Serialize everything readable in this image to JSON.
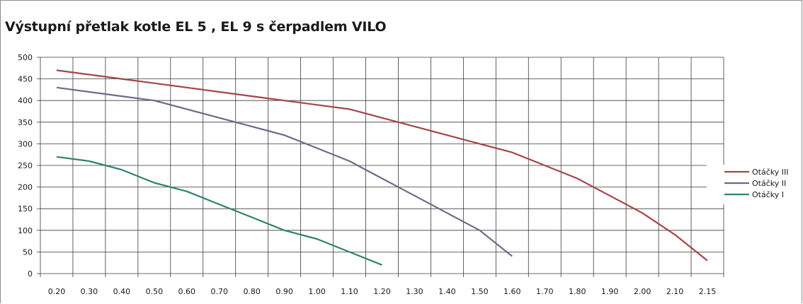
{
  "chart_data": {
    "type": "line",
    "title": "Výstupní přetlak kotle EL 5 , EL 9 s čerpadlem VILO",
    "xlabel": "",
    "ylabel": "",
    "categories": [
      "0.20",
      "0.30",
      "0.40",
      "0.50",
      "0.60",
      "0.70",
      "0.80",
      "0.90",
      "1.00",
      "1.10",
      "1.20",
      "1.30",
      "1.40",
      "1.50",
      "1.60",
      "1.70",
      "1.80",
      "1.90",
      "2.00",
      "2.10",
      "2.15"
    ],
    "y_ticks": [
      "0",
      "50",
      "100",
      "150",
      "200",
      "250",
      "300",
      "350",
      "400",
      "450",
      "500"
    ],
    "ylim": [
      0,
      500
    ],
    "grid": "vertical and horizontal",
    "legend_position": "right",
    "series": [
      {
        "name": "Otáčky III",
        "color": "#a5454a",
        "values": [
          470,
          460,
          450,
          440,
          430,
          420,
          410,
          400,
          390,
          380,
          360,
          340,
          320,
          300,
          280,
          250,
          220,
          180,
          140,
          90,
          30
        ]
      },
      {
        "name": "Otáčky II",
        "color": "#6f6a86",
        "values": [
          430,
          420,
          410,
          400,
          380,
          360,
          340,
          320,
          290,
          260,
          220,
          180,
          140,
          100,
          40,
          null,
          null,
          null,
          null,
          null,
          null
        ]
      },
      {
        "name": "Otáčky I",
        "color": "#2e8270",
        "values": [
          270,
          260,
          240,
          210,
          190,
          160,
          130,
          100,
          80,
          50,
          20,
          null,
          null,
          null,
          null,
          null,
          null,
          null,
          null,
          null,
          null
        ]
      }
    ]
  }
}
